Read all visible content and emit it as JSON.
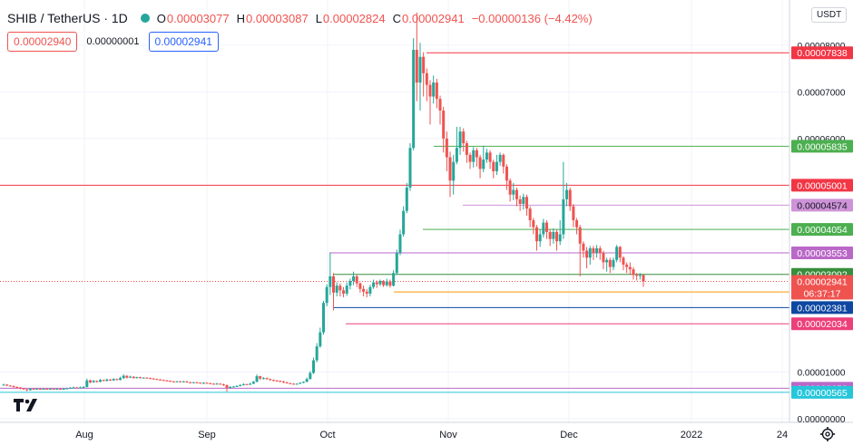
{
  "header": {
    "title": "SHIB / TetherUS · 1D",
    "ohlc": [
      {
        "key": "O",
        "value": "0.00003077"
      },
      {
        "key": "H",
        "value": "0.00003087"
      },
      {
        "key": "L",
        "value": "0.00002824"
      },
      {
        "key": "C",
        "value": "0.00002941"
      }
    ],
    "change": "−0.00000136 (−4.42%)",
    "status_color": "#26a69a"
  },
  "trade": {
    "sell_price": "0.00002940",
    "spread": "0.00000001",
    "buy_price": "0.00002941"
  },
  "currency": "USDT",
  "chart_data": {
    "type": "candlestick",
    "symbol": "SHIB / TetherUS",
    "interval": "1D",
    "x_ticks": [
      "Aug",
      "Sep",
      "Oct",
      "Nov",
      "Dec",
      "2022",
      "24"
    ],
    "y_ticks": [
      "0.00008000",
      "0.00007000",
      "0.00006000",
      "0.00001000",
      "0.00000000"
    ],
    "ylim": [
      0,
      8.89e-05
    ],
    "countdown": "06:37:17",
    "last_price": "0.00002941",
    "last_color": "#ef5350",
    "up_color": "#26a69a",
    "down_color": "#ef5350",
    "horizontal_lines": [
      {
        "value": 7.838e-05,
        "label": "0.00007838",
        "color": "#f23645"
      },
      {
        "value": 5.835e-05,
        "label": "0.00005835",
        "color": "#4caf50"
      },
      {
        "value": 5.001e-05,
        "label": "0.00005001",
        "color": "#f23645"
      },
      {
        "value": 4.574e-05,
        "label": "0.00004574",
        "color": "#ce93d8"
      },
      {
        "value": 4.054e-05,
        "label": "0.00004054",
        "color": "#4caf50"
      },
      {
        "value": 3.553e-05,
        "label": "0.00003553",
        "color": "#ba68c8"
      },
      {
        "value": 3.092e-05,
        "label": "0.00003092",
        "color": "#388e3c"
      },
      {
        "value": 2.715e-05,
        "label": "0.00002715",
        "color": "#ff9800"
      },
      {
        "value": 2.381e-05,
        "label": "0.00002381",
        "color": "#0d47a1"
      },
      {
        "value": 2.034e-05,
        "label": "0.00002034",
        "color": "#ec407a"
      },
      {
        "value": 6.52e-06,
        "label": "0.00000652",
        "color": "#ba68c8"
      },
      {
        "value": 5.65e-06,
        "label": "0.00000565",
        "color": "#26c6da"
      }
    ],
    "candles": [
      [
        7.2e-06,
        7.3e-06,
        7.5e-06,
        7.1e-06
      ],
      [
        7.3e-06,
        7.1e-06,
        7.4e-06,
        7e-06
      ],
      [
        7.1e-06,
        7e-06,
        7.2e-06,
        6.9e-06
      ],
      [
        7e-06,
        6.8e-06,
        7.1e-06,
        6.6e-06
      ],
      [
        6.8e-06,
        6.7e-06,
        6.9e-06,
        6.5e-06
      ],
      [
        6.7e-06,
        6.5e-06,
        6.8e-06,
        6.3e-06
      ],
      [
        6.5e-06,
        6.3e-06,
        6.6e-06,
        6.2e-06
      ],
      [
        6.3e-06,
        6.1e-06,
        6.4e-06,
        5.9e-06
      ],
      [
        6.1e-06,
        6.4e-06,
        6.6e-06,
        6e-06
      ],
      [
        6.4e-06,
        6.3e-06,
        6.5e-06,
        6.2e-06
      ],
      [
        6.3e-06,
        6.4e-06,
        6.5e-06,
        6.2e-06
      ],
      [
        6.4e-06,
        6.3e-06,
        6.5e-06,
        6.2e-06
      ],
      [
        6.3e-06,
        6.4e-06,
        6.5e-06,
        6.2e-06
      ],
      [
        6.4e-06,
        6.3e-06,
        6.5e-06,
        6.2e-06
      ],
      [
        6.3e-06,
        6.4e-06,
        6.5e-06,
        6.2e-06
      ],
      [
        6.4e-06,
        6.3e-06,
        6.5e-06,
        6.2e-06
      ],
      [
        6.3e-06,
        6.4e-06,
        6.5e-06,
        6.2e-06
      ],
      [
        6.4e-06,
        6.3e-06,
        6.5e-06,
        6.2e-06
      ],
      [
        6.3e-06,
        6.4e-06,
        6.5e-06,
        6.2e-06
      ],
      [
        6.4e-06,
        6.5e-06,
        6.6e-06,
        6.3e-06
      ],
      [
        6.5e-06,
        6.6e-06,
        6.8e-06,
        6.4e-06
      ],
      [
        6.6e-06,
        6.7e-06,
        6.9e-06,
        6.5e-06
      ],
      [
        6.7e-06,
        6.6e-06,
        6.8e-06,
        6.5e-06
      ],
      [
        6.6e-06,
        6.7e-06,
        6.9e-06,
        6.5e-06
      ],
      [
        6.7e-06,
        6.8e-06,
        7e-06,
        6.6e-06
      ],
      [
        6.8e-06,
        8.2e-06,
        8.6e-06,
        6.7e-06
      ],
      [
        8.2e-06,
        7.8e-06,
        8.4e-06,
        7.6e-06
      ],
      [
        7.8e-06,
        8.1e-06,
        8.3e-06,
        7.7e-06
      ],
      [
        8.1e-06,
        7.9e-06,
        8.2e-06,
        7.7e-06
      ],
      [
        7.9e-06,
        8.3e-06,
        8.5e-06,
        7.8e-06
      ],
      [
        8.3e-06,
        8.1e-06,
        8.4e-06,
        8e-06
      ],
      [
        8.1e-06,
        8.4e-06,
        8.6e-06,
        8e-06
      ],
      [
        8.4e-06,
        8.2e-06,
        8.5e-06,
        8.1e-06
      ],
      [
        8.2e-06,
        8.5e-06,
        8.7e-06,
        8.1e-06
      ],
      [
        8.5e-06,
        8.3e-06,
        8.6e-06,
        8.2e-06
      ],
      [
        8.3e-06,
        8.7e-06,
        9e-06,
        8.2e-06
      ],
      [
        8.7e-06,
        9.2e-06,
        9.5e-06,
        8.5e-06
      ],
      [
        9.2e-06,
        8.8e-06,
        9.3e-06,
        8.6e-06
      ],
      [
        8.8e-06,
        9e-06,
        9.2e-06,
        8.7e-06
      ],
      [
        9e-06,
        8.7e-06,
        9.1e-06,
        8.6e-06
      ],
      [
        8.7e-06,
        8.9e-06,
        9e-06,
        8.6e-06
      ],
      [
        8.9e-06,
        8.7e-06,
        9e-06,
        8.6e-06
      ],
      [
        8.7e-06,
        8.8e-06,
        8.9e-06,
        8.6e-06
      ],
      [
        8.8e-06,
        8.7e-06,
        8.9e-06,
        8.6e-06
      ],
      [
        8.7e-06,
        8.6e-06,
        8.8e-06,
        8.5e-06
      ],
      [
        8.6e-06,
        8.5e-06,
        8.7e-06,
        8.4e-06
      ],
      [
        8.5e-06,
        8.4e-06,
        8.6e-06,
        8.3e-06
      ],
      [
        8.4e-06,
        8.3e-06,
        8.5e-06,
        8.2e-06
      ],
      [
        8.3e-06,
        8.2e-06,
        8.4e-06,
        8.1e-06
      ],
      [
        8.2e-06,
        8.1e-06,
        8.3e-06,
        8e-06
      ],
      [
        8.1e-06,
        8e-06,
        8.2e-06,
        7.9e-06
      ],
      [
        8e-06,
        7.9e-06,
        8.1e-06,
        7.8e-06
      ],
      [
        7.9e-06,
        8e-06,
        8.1e-06,
        7.8e-06
      ],
      [
        8e-06,
        7.9e-06,
        8.1e-06,
        7.8e-06
      ],
      [
        7.9e-06,
        8e-06,
        8.1e-06,
        7.8e-06
      ],
      [
        8e-06,
        7.8e-06,
        8.1e-06,
        7.7e-06
      ],
      [
        7.8e-06,
        7.7e-06,
        7.9e-06,
        7.6e-06
      ],
      [
        7.7e-06,
        7.8e-06,
        7.9e-06,
        7.6e-06
      ],
      [
        7.8e-06,
        7.7e-06,
        7.9e-06,
        7.6e-06
      ],
      [
        7.7e-06,
        7.6e-06,
        7.8e-06,
        7.5e-06
      ],
      [
        7.6e-06,
        7.7e-06,
        7.8e-06,
        7.4e-06
      ],
      [
        7.7e-06,
        7.6e-06,
        7.8e-06,
        7.5e-06
      ],
      [
        7.6e-06,
        7.5e-06,
        7.7e-06,
        7.4e-06
      ],
      [
        7.5e-06,
        7.4e-06,
        7.6e-06,
        7.3e-06
      ],
      [
        7.4e-06,
        7.5e-06,
        7.7e-06,
        7.3e-06
      ],
      [
        7.5e-06,
        7.4e-06,
        7.6e-06,
        7.3e-06
      ],
      [
        7.4e-06,
        7.2e-06,
        7.5e-06,
        7e-06
      ],
      [
        7.2e-06,
        6.6e-06,
        7.3e-06,
        5.8e-06
      ],
      [
        6.6e-06,
        6.8e-06,
        7e-06,
        6.4e-06
      ],
      [
        6.8e-06,
        6.9e-06,
        7e-06,
        6.7e-06
      ],
      [
        6.9e-06,
        7e-06,
        7.2e-06,
        6.8e-06
      ],
      [
        7e-06,
        7.2e-06,
        7.4e-06,
        6.9e-06
      ],
      [
        7.2e-06,
        7.4e-06,
        7.6e-06,
        7.1e-06
      ],
      [
        7.4e-06,
        7.3e-06,
        7.5e-06,
        7.2e-06
      ],
      [
        7.3e-06,
        7.5e-06,
        7.7e-06,
        7.2e-06
      ],
      [
        7.5e-06,
        7.9e-06,
        8.1e-06,
        7.4e-06
      ],
      [
        7.9e-06,
        9.1e-06,
        9.5e-06,
        7.8e-06
      ],
      [
        9.1e-06,
        8.6e-06,
        9.2e-06,
        8.3e-06
      ],
      [
        8.6e-06,
        8.7e-06,
        8.9e-06,
        8.4e-06
      ],
      [
        8.7e-06,
        8.5e-06,
        8.8e-06,
        8.3e-06
      ],
      [
        8.5e-06,
        8.3e-06,
        8.6e-06,
        8.1e-06
      ],
      [
        8.3e-06,
        8.2e-06,
        8.4e-06,
        8e-06
      ],
      [
        8.2e-06,
        8.1e-06,
        8.3e-06,
        7.9e-06
      ],
      [
        8.1e-06,
        8e-06,
        8.2e-06,
        7.8e-06
      ],
      [
        8e-06,
        7.8e-06,
        8.1e-06,
        7.6e-06
      ],
      [
        7.8e-06,
        7.6e-06,
        7.9e-06,
        7.5e-06
      ],
      [
        7.6e-06,
        7.5e-06,
        7.7e-06,
        7.4e-06
      ],
      [
        7.5e-06,
        7.4e-06,
        7.6e-06,
        7.3e-06
      ],
      [
        7.4e-06,
        7.5e-06,
        7.6e-06,
        7.3e-06
      ],
      [
        7.5e-06,
        7.7e-06,
        7.8e-06,
        7.4e-06
      ],
      [
        7.7e-06,
        7.9e-06,
        8e-06,
        7.6e-06
      ],
      [
        7.9e-06,
        8.5e-06,
        8.8e-06,
        7.8e-06
      ],
      [
        8.5e-06,
        9.8e-06,
        1.02e-05,
        8.4e-06
      ],
      [
        9.8e-06,
        1.25e-05,
        1.31e-05,
        9.6e-06
      ],
      [
        1.25e-05,
        1.55e-05,
        1.62e-05,
        1.21e-05
      ],
      [
        1.55e-05,
        1.85e-05,
        1.95e-05,
        1.52e-05
      ],
      [
        1.85e-05,
        2.48e-05,
        2.52e-05,
        1.8e-05
      ],
      [
        2.48e-05,
        2.82e-05,
        2.88e-05,
        2.41e-05
      ],
      [
        2.82e-05,
        3.05e-05,
        3.55e-05,
        2.65e-05
      ],
      [
        3.05e-05,
        2.7e-05,
        3.12e-05,
        2.32e-05
      ],
      [
        2.7e-05,
        2.85e-05,
        2.92e-05,
        2.62e-05
      ],
      [
        2.85e-05,
        2.75e-05,
        2.9e-05,
        2.62e-05
      ],
      [
        2.75e-05,
        2.68e-05,
        2.82e-05,
        2.6e-05
      ],
      [
        2.68e-05,
        2.85e-05,
        2.92e-05,
        2.63e-05
      ],
      [
        2.85e-05,
        2.95e-05,
        3e-05,
        2.77e-05
      ],
      [
        2.95e-05,
        3.05e-05,
        3.15e-05,
        2.86e-05
      ],
      [
        3.05e-05,
        2.9e-05,
        3.08e-05,
        2.82e-05
      ],
      [
        2.9e-05,
        2.78e-05,
        2.92e-05,
        2.7e-05
      ],
      [
        2.78e-05,
        2.72e-05,
        2.85e-05,
        2.62e-05
      ],
      [
        2.72e-05,
        2.68e-05,
        2.78e-05,
        2.6e-05
      ],
      [
        2.68e-05,
        2.82e-05,
        2.87e-05,
        2.62e-05
      ],
      [
        2.82e-05,
        2.92e-05,
        2.98e-05,
        2.78e-05
      ],
      [
        2.92e-05,
        2.88e-05,
        2.96e-05,
        2.8e-05
      ],
      [
        2.88e-05,
        2.95e-05,
        2.98e-05,
        2.84e-05
      ],
      [
        2.95e-05,
        2.86e-05,
        2.97e-05,
        2.82e-05
      ],
      [
        2.86e-05,
        2.94e-05,
        3e-05,
        2.83e-05
      ],
      [
        2.94e-05,
        2.85e-05,
        2.98e-05,
        2.81e-05
      ],
      [
        2.85e-05,
        3.12e-05,
        3.18e-05,
        2.83e-05
      ],
      [
        3.12e-05,
        3.55e-05,
        3.62e-05,
        3.08e-05
      ],
      [
        3.55e-05,
        3.95e-05,
        4.05e-05,
        3.5e-05
      ],
      [
        3.95e-05,
        4.45e-05,
        4.55e-05,
        3.9e-05
      ],
      [
        4.45e-05,
        4.95e-05,
        5.05e-05,
        4.4e-05
      ],
      [
        4.95e-05,
        5.8e-05,
        5.9e-05,
        4.88e-05
      ],
      [
        5.8e-05,
        7.9e-05,
        8.15e-05,
        5.75e-05
      ],
      [
        7.9e-05,
        7.2e-05,
        8.7e-05,
        6.8e-05
      ],
      [
        7.2e-05,
        7.75e-05,
        8.05e-05,
        6.6e-05
      ],
      [
        7.75e-05,
        7.4e-05,
        7.85e-05,
        6.9e-05
      ],
      [
        7.4e-05,
        7.15e-05,
        7.5e-05,
        6.8e-05
      ],
      [
        7.15e-05,
        6.9e-05,
        7.25e-05,
        6.3e-05
      ],
      [
        6.9e-05,
        7.2e-05,
        7.35e-05,
        6.75e-05
      ],
      [
        7.2e-05,
        6.85e-05,
        7.28e-05,
        6.65e-05
      ],
      [
        6.85e-05,
        6.6e-05,
        6.92e-05,
        6.3e-05
      ],
      [
        6.6e-05,
        6e-05,
        6.68e-05,
        5.7e-05
      ],
      [
        6e-05,
        5.6e-05,
        6.15e-05,
        5.3e-05
      ],
      [
        5.6e-05,
        5.1e-05,
        5.72e-05,
        4.75e-05
      ],
      [
        5.1e-05,
        5.5e-05,
        5.65e-05,
        4.8e-05
      ],
      [
        5.5e-05,
        5.8e-05,
        6.25e-05,
        5.45e-05
      ],
      [
        5.8e-05,
        6.15e-05,
        6.25e-05,
        5.65e-05
      ],
      [
        6.15e-05,
        5.9e-05,
        6.22e-05,
        5.72e-05
      ],
      [
        5.9e-05,
        5.65e-05,
        5.95e-05,
        5.48e-05
      ],
      [
        5.65e-05,
        5.5e-05,
        5.7e-05,
        5.35e-05
      ],
      [
        5.5e-05,
        5.75e-05,
        5.82e-05,
        5.38e-05
      ],
      [
        5.75e-05,
        5.6e-05,
        5.8e-05,
        5.4e-05
      ],
      [
        5.6e-05,
        5.35e-05,
        5.65e-05,
        5.15e-05
      ],
      [
        5.35e-05,
        5.55e-05,
        5.85e-05,
        5.28e-05
      ],
      [
        5.55e-05,
        5.7e-05,
        5.78e-05,
        5.48e-05
      ],
      [
        5.7e-05,
        5.5e-05,
        5.75e-05,
        5.35e-05
      ],
      [
        5.5e-05,
        5.3e-05,
        5.55e-05,
        5.15e-05
      ],
      [
        5.3e-05,
        5.5e-05,
        5.65e-05,
        5.22e-05
      ],
      [
        5.5e-05,
        5.65e-05,
        5.7e-05,
        5.42e-05
      ],
      [
        5.65e-05,
        5.4e-05,
        5.68e-05,
        5.25e-05
      ],
      [
        5.4e-05,
        5.1e-05,
        5.45e-05,
        4.9e-05
      ],
      [
        5.1e-05,
        4.8e-05,
        5.15e-05,
        4.65e-05
      ],
      [
        4.8e-05,
        4.9e-05,
        5.05e-05,
        4.68e-05
      ],
      [
        4.9e-05,
        4.7e-05,
        4.95e-05,
        4.55e-05
      ],
      [
        4.7e-05,
        4.6e-05,
        4.78e-05,
        4.45e-05
      ],
      [
        4.6e-05,
        4.75e-05,
        4.82e-05,
        4.48e-05
      ],
      [
        4.75e-05,
        4.5e-05,
        4.8e-05,
        4.35e-05
      ],
      [
        4.5e-05,
        4.25e-05,
        4.55e-05,
        4.1e-05
      ],
      [
        4.25e-05,
        4.1e-05,
        4.3e-05,
        3.95e-05
      ],
      [
        4.1e-05,
        3.8e-05,
        4.15e-05,
        3.6e-05
      ],
      [
        3.8e-05,
        3.95e-05,
        4.05e-05,
        3.68e-05
      ],
      [
        3.95e-05,
        4.2e-05,
        4.28e-05,
        3.88e-05
      ],
      [
        4.2e-05,
        4e-05,
        4.25e-05,
        3.85e-05
      ],
      [
        4e-05,
        3.85e-05,
        4.05e-05,
        3.7e-05
      ],
      [
        3.85e-05,
        4e-05,
        4.08e-05,
        3.75e-05
      ],
      [
        4e-05,
        3.8e-05,
        4.05e-05,
        3.6e-05
      ],
      [
        3.8e-05,
        3.95e-05,
        4.25e-05,
        3.72e-05
      ],
      [
        3.95e-05,
        4.7e-05,
        5.5e-05,
        3.85e-05
      ],
      [
        4.7e-05,
        4.9e-05,
        5.05e-05,
        4.55e-05
      ],
      [
        4.9e-05,
        4.55e-05,
        4.95e-05,
        4.45e-05
      ],
      [
        4.55e-05,
        4.25e-05,
        4.6e-05,
        4.1e-05
      ],
      [
        4.25e-05,
        4.1e-05,
        4.3e-05,
        3.95e-05
      ],
      [
        4.1e-05,
        3.75e-05,
        4.15e-05,
        3.05e-05
      ],
      [
        3.75e-05,
        3.6e-05,
        3.8e-05,
        3.45e-05
      ],
      [
        3.6e-05,
        3.45e-05,
        3.68e-05,
        3.22e-05
      ],
      [
        3.45e-05,
        3.65e-05,
        3.7e-05,
        3.3e-05
      ],
      [
        3.65e-05,
        3.55e-05,
        3.7e-05,
        3.4e-05
      ],
      [
        3.55e-05,
        3.65e-05,
        3.72e-05,
        3.45e-05
      ],
      [
        3.65e-05,
        3.55e-05,
        3.7e-05,
        3.4e-05
      ],
      [
        3.55e-05,
        3.35e-05,
        3.6e-05,
        3.2e-05
      ],
      [
        3.35e-05,
        3.4e-05,
        3.45e-05,
        3.15e-05
      ],
      [
        3.4e-05,
        3.25e-05,
        3.45e-05,
        3.12e-05
      ],
      [
        3.25e-05,
        3.4e-05,
        3.45e-05,
        3.18e-05
      ],
      [
        3.4e-05,
        3.68e-05,
        3.72e-05,
        3.35e-05
      ],
      [
        3.68e-05,
        3.45e-05,
        3.7e-05,
        3.35e-05
      ],
      [
        3.45e-05,
        3.3e-05,
        3.48e-05,
        3.18e-05
      ],
      [
        3.3e-05,
        3.25e-05,
        3.35e-05,
        3.12e-05
      ],
      [
        3.25e-05,
        3.2e-05,
        3.35e-05,
        3.08e-05
      ],
      [
        3.2e-05,
        3.08e-05,
        3.25e-05,
        2.98e-05
      ],
      [
        3.08e-05,
        3.06e-05,
        3.12e-05,
        2.96e-05
      ],
      [
        3.06e-05,
        3.077e-05,
        3.12e-05,
        2.98e-05
      ],
      [
        3.077e-05,
        2.941e-05,
        3.087e-05,
        2.824e-05
      ]
    ]
  }
}
